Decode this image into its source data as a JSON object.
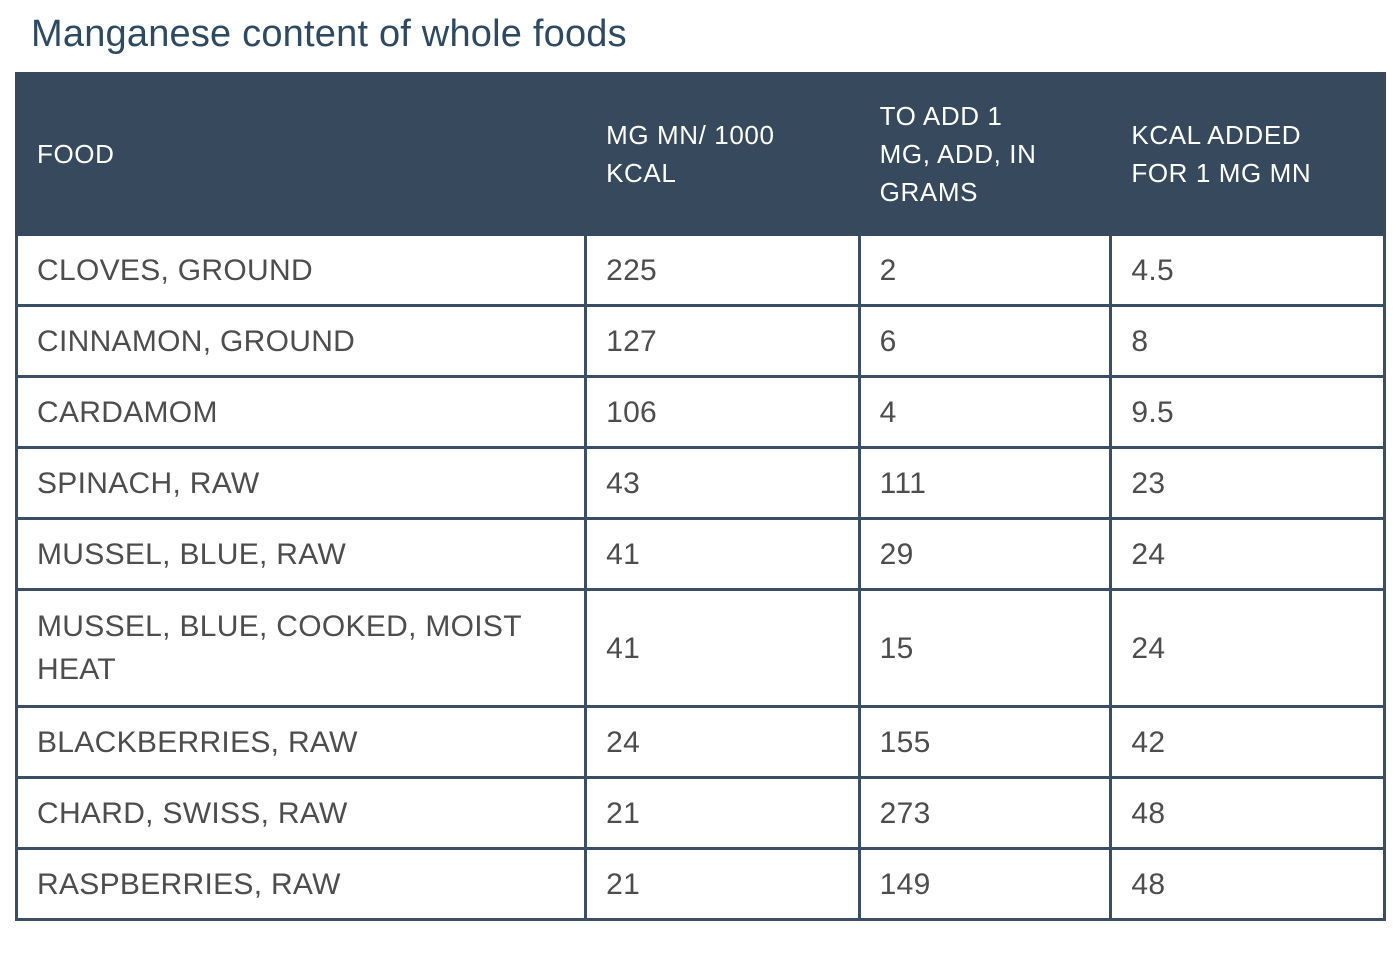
{
  "title": "Manganese content of whole foods",
  "colors": {
    "header_bg": "#36495d",
    "border": "#3a4f64",
    "title_text": "#2e4a63",
    "header_text": "#ffffff",
    "body_text": "#4d4d4d",
    "page_bg": "#ffffff"
  },
  "table": {
    "header_lines": [
      [
        "FOOD"
      ],
      [
        "MG MN/ 1000",
        "KCAL"
      ],
      [
        "TO ADD 1",
        "MG, ADD, IN",
        "GRAMS"
      ],
      [
        "KCAL ADDED",
        "FOR 1 MG MN"
      ]
    ],
    "rows": [
      [
        "CLOVES, GROUND",
        "225",
        "2",
        "4.5"
      ],
      [
        "CINNAMON, GROUND",
        "127",
        "6",
        "8"
      ],
      [
        "CARDAMOM",
        "106",
        "4",
        "9.5"
      ],
      [
        "SPINACH, RAW",
        "43",
        "111",
        "23"
      ],
      [
        "MUSSEL, BLUE, RAW",
        "41",
        "29",
        "24"
      ],
      [
        "MUSSEL, BLUE, COOKED, MOIST HEAT",
        "41",
        "15",
        "24"
      ],
      [
        "BLACKBERRIES, RAW",
        "24",
        "155",
        "42"
      ],
      [
        "CHARD, SWISS, RAW",
        "21",
        "273",
        "48"
      ],
      [
        "RASPBERRIES, RAW",
        "21",
        "149",
        "48"
      ]
    ]
  },
  "chart_data": {
    "type": "table",
    "title": "Manganese content of whole foods",
    "columns": [
      "FOOD",
      "MG MN/ 1000 KCAL",
      "TO ADD 1 MG, ADD, IN GRAMS",
      "KCAL ADDED FOR 1 MG MN"
    ],
    "rows": [
      {
        "food": "CLOVES, GROUND",
        "mg_mn_per_1000_kcal": 225,
        "grams_to_add_1_mg": 2,
        "kcal_added_for_1_mg_mn": 4.5
      },
      {
        "food": "CINNAMON, GROUND",
        "mg_mn_per_1000_kcal": 127,
        "grams_to_add_1_mg": 6,
        "kcal_added_for_1_mg_mn": 8
      },
      {
        "food": "CARDAMOM",
        "mg_mn_per_1000_kcal": 106,
        "grams_to_add_1_mg": 4,
        "kcal_added_for_1_mg_mn": 9.5
      },
      {
        "food": "SPINACH, RAW",
        "mg_mn_per_1000_kcal": 43,
        "grams_to_add_1_mg": 111,
        "kcal_added_for_1_mg_mn": 23
      },
      {
        "food": "MUSSEL, BLUE, RAW",
        "mg_mn_per_1000_kcal": 41,
        "grams_to_add_1_mg": 29,
        "kcal_added_for_1_mg_mn": 24
      },
      {
        "food": "MUSSEL, BLUE, COOKED, MOIST HEAT",
        "mg_mn_per_1000_kcal": 41,
        "grams_to_add_1_mg": 15,
        "kcal_added_for_1_mg_mn": 24
      },
      {
        "food": "BLACKBERRIES, RAW",
        "mg_mn_per_1000_kcal": 24,
        "grams_to_add_1_mg": 155,
        "kcal_added_for_1_mg_mn": 42
      },
      {
        "food": "CHARD, SWISS, RAW",
        "mg_mn_per_1000_kcal": 21,
        "grams_to_add_1_mg": 273,
        "kcal_added_for_1_mg_mn": 48
      },
      {
        "food": "RASPBERRIES, RAW",
        "mg_mn_per_1000_kcal": 21,
        "grams_to_add_1_mg": 149,
        "kcal_added_for_1_mg_mn": 48
      }
    ],
    "layout": {
      "grid": "full-borders",
      "header_style": "dark-slate-band",
      "legend": "none"
    }
  }
}
